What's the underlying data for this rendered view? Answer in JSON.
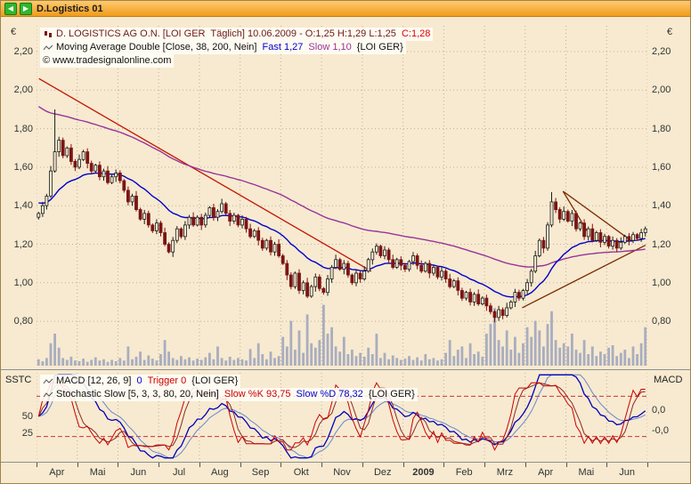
{
  "window": {
    "title": "D.Logistics 01"
  },
  "labels": {
    "currency": "€",
    "panel_left": "SSTC",
    "panel_right": "MACD"
  },
  "colors": {
    "background": "#f7ead0",
    "titlebar_accent": "#f09c1c",
    "grid": "#bcb196",
    "volume": "#a9adbf",
    "candle_up": "#1c1c1c",
    "candle_down": "#7c1414",
    "trendline_red": "#c41200",
    "trendline_brown": "#7a2a00"
  },
  "legend_main": {
    "lines": [
      {
        "icon": "candle-series-icon",
        "parts": [
          {
            "text": "D. LOGISTICS AG O.N. [LOI GER  Täglich] 10.06.2009 - O:1,25 H:1,29 L:1,25 ",
            "color": "#6b1a1a"
          },
          {
            "text": "C:1,28",
            "color": "#dd0000"
          }
        ]
      },
      {
        "icon": "line-series-icon",
        "parts": [
          {
            "text": "Moving Average Double [Close, 38, 200, Nein] ",
            "color": "#111111"
          },
          {
            "text": "Fast 1,27 ",
            "color": "#0000cc"
          },
          {
            "text": "Slow 1,10 ",
            "color": "#993399"
          },
          {
            "text": "{LOI GER}",
            "color": "#111111"
          }
        ]
      },
      {
        "icon": "",
        "parts": [
          {
            "text": "© www.tradesignalonline.com",
            "color": "#111111"
          }
        ]
      }
    ]
  },
  "legend_indicator": {
    "lines": [
      {
        "icon": "line-series-icon",
        "parts": [
          {
            "text": "MACD [12, 26, 9] ",
            "color": "#111111"
          },
          {
            "text": "0 ",
            "color": "#0000cc"
          },
          {
            "text": "Trigger 0 ",
            "color": "#cc0000"
          },
          {
            "text": "{LOI GER}",
            "color": "#111111"
          }
        ]
      },
      {
        "icon": "line-series-icon",
        "parts": [
          {
            "text": "Stochastic Slow [5, 3, 3, 80, 20, Nein] ",
            "color": "#111111"
          },
          {
            "text": "Slow %K 93,75 ",
            "color": "#cc0000"
          },
          {
            "text": "Slow %D 78,32 ",
            "color": "#0000cc"
          },
          {
            "text": "{LOI GER}",
            "color": "#111111"
          }
        ]
      }
    ]
  },
  "chart_data": {
    "type": "candlestick",
    "title": "D. LOGISTICS AG O.N. [LOI GER Täglich]",
    "date": "10.06.2009",
    "ohlc_today": {
      "open": "1,25",
      "high": "1,29",
      "low": "1,25",
      "close": "1,28"
    },
    "y_axis": {
      "unit": "€",
      "labels": [
        "2,20",
        "2,00",
        "1,80",
        "1,60",
        "1,40",
        "1,20",
        "1,00",
        "0,80"
      ],
      "values": [
        2.2,
        2.0,
        1.8,
        1.6,
        1.4,
        1.2,
        1.0,
        0.8
      ]
    },
    "x_axis": {
      "labels": [
        "Apr",
        "Mai",
        "Jun",
        "Jul",
        "Aug",
        "Sep",
        "Okt",
        "Nov",
        "Dez",
        "2009",
        "Feb",
        "Mrz",
        "Apr",
        "Mai",
        "Jun"
      ]
    },
    "closes": [
      1.36,
      1.4,
      1.45,
      1.58,
      1.68,
      1.74,
      1.66,
      1.7,
      1.63,
      1.6,
      1.64,
      1.68,
      1.62,
      1.58,
      1.61,
      1.55,
      1.58,
      1.52,
      1.55,
      1.57,
      1.53,
      1.48,
      1.42,
      1.45,
      1.38,
      1.33,
      1.36,
      1.3,
      1.27,
      1.31,
      1.26,
      1.2,
      1.16,
      1.22,
      1.28,
      1.24,
      1.3,
      1.34,
      1.3,
      1.34,
      1.3,
      1.35,
      1.39,
      1.34,
      1.37,
      1.41,
      1.36,
      1.32,
      1.35,
      1.3,
      1.33,
      1.28,
      1.24,
      1.27,
      1.22,
      1.18,
      1.22,
      1.16,
      1.2,
      1.14,
      1.1,
      1.04,
      0.98,
      1.05,
      0.96,
      1.0,
      0.93,
      0.98,
      1.03,
      0.97,
      0.95,
      1.02,
      1.08,
      1.12,
      1.07,
      1.1,
      1.04,
      1.0,
      1.05,
      1.02,
      1.06,
      1.12,
      1.16,
      1.19,
      1.14,
      1.17,
      1.12,
      1.08,
      1.12,
      1.09,
      1.07,
      1.11,
      1.14,
      1.09,
      1.06,
      1.1,
      1.05,
      1.08,
      1.03,
      1.06,
      1.02,
      0.98,
      1.01,
      0.96,
      0.92,
      0.95,
      0.9,
      0.94,
      0.89,
      0.92,
      0.88,
      0.85,
      0.82,
      0.86,
      0.83,
      0.87,
      0.9,
      0.95,
      0.92,
      0.96,
      1.0,
      1.06,
      1.14,
      1.22,
      1.18,
      1.3,
      1.42,
      1.38,
      1.33,
      1.37,
      1.32,
      1.36,
      1.28,
      1.31,
      1.24,
      1.28,
      1.22,
      1.26,
      1.21,
      1.24,
      1.19,
      1.22,
      1.18,
      1.21,
      1.24,
      1.22,
      1.25,
      1.23,
      1.26,
      1.28
    ],
    "volumes": [
      0.1,
      0.07,
      0.12,
      0.35,
      0.5,
      0.28,
      0.12,
      0.09,
      0.14,
      0.08,
      0.07,
      0.11,
      0.06,
      0.09,
      0.13,
      0.08,
      0.1,
      0.06,
      0.09,
      0.07,
      0.12,
      0.08,
      0.3,
      0.1,
      0.14,
      0.22,
      0.09,
      0.16,
      0.11,
      0.08,
      0.18,
      0.4,
      0.22,
      0.12,
      0.09,
      0.15,
      0.1,
      0.13,
      0.08,
      0.11,
      0.09,
      0.13,
      0.2,
      0.1,
      0.3,
      0.12,
      0.08,
      0.14,
      0.09,
      0.12,
      0.1,
      0.08,
      0.26,
      0.12,
      0.35,
      0.18,
      0.1,
      0.22,
      0.12,
      0.15,
      0.45,
      0.3,
      0.7,
      0.25,
      0.55,
      0.2,
      0.8,
      0.35,
      0.28,
      0.4,
      0.95,
      0.5,
      0.6,
      0.3,
      0.22,
      0.45,
      0.18,
      0.25,
      0.15,
      0.2,
      0.14,
      0.28,
      0.18,
      0.5,
      0.12,
      0.2,
      0.1,
      0.16,
      0.12,
      0.09,
      0.11,
      0.15,
      0.09,
      0.13,
      0.08,
      0.18,
      0.1,
      0.12,
      0.08,
      0.1,
      0.2,
      0.4,
      0.15,
      0.25,
      0.3,
      0.12,
      0.35,
      0.18,
      0.22,
      0.14,
      0.5,
      0.65,
      0.9,
      0.4,
      0.3,
      0.55,
      0.25,
      0.45,
      0.2,
      0.35,
      0.6,
      0.45,
      0.7,
      0.55,
      0.3,
      0.65,
      0.85,
      0.4,
      0.28,
      0.35,
      0.3,
      0.5,
      0.25,
      0.2,
      0.4,
      0.18,
      0.3,
      0.15,
      0.22,
      0.18,
      0.28,
      0.32,
      0.15,
      0.2,
      0.25,
      0.12,
      0.3,
      0.18,
      0.35,
      0.6
    ],
    "spikes": [
      {
        "i": 4,
        "high": 1.9
      },
      {
        "i": 112,
        "low": 0.795
      },
      {
        "i": 126,
        "high": 1.47
      }
    ],
    "moving_averages": {
      "fast": {
        "period": 38,
        "value": "1,27",
        "color": "#0000cc"
      },
      "slow": {
        "period": 200,
        "value": "1,10",
        "color": "#993399"
      }
    },
    "trendlines": [
      {
        "t1": 0.004,
        "p1": 2.06,
        "t2": 0.548,
        "p2": 1.06,
        "color": "#c41200"
      },
      {
        "t1": 0.795,
        "p1": 0.87,
        "t2": 0.997,
        "p2": 1.195,
        "color": "#7a2a00"
      },
      {
        "t1": 0.862,
        "p1": 1.475,
        "t2": 0.975,
        "p2": 1.215,
        "color": "#7a2a00"
      },
      {
        "t1": 0.862,
        "p1": 1.475,
        "t2": 0.906,
        "p2": 1.245,
        "color": "#7a2a00"
      }
    ],
    "indicator_panel": {
      "left_title": "SSTC",
      "right_title": "MACD",
      "left_ticks": [
        "50",
        "25"
      ],
      "left_tick_values": [
        50,
        25
      ],
      "right_ticks": [
        "0,0",
        "-0,0"
      ],
      "thresholds": [
        80,
        20
      ],
      "stoch": {
        "params": "[5, 3, 3, 80, 20, Nein]",
        "k": "93,75",
        "d": "78,32",
        "k_color": "#cc0000",
        "d_color": "#8b2a2a"
      },
      "macd": {
        "params": "[12, 26, 9]",
        "value": "0",
        "trigger": "0"
      },
      "macd_color": "#0000bb",
      "trigger_color": "#6688cc"
    }
  }
}
